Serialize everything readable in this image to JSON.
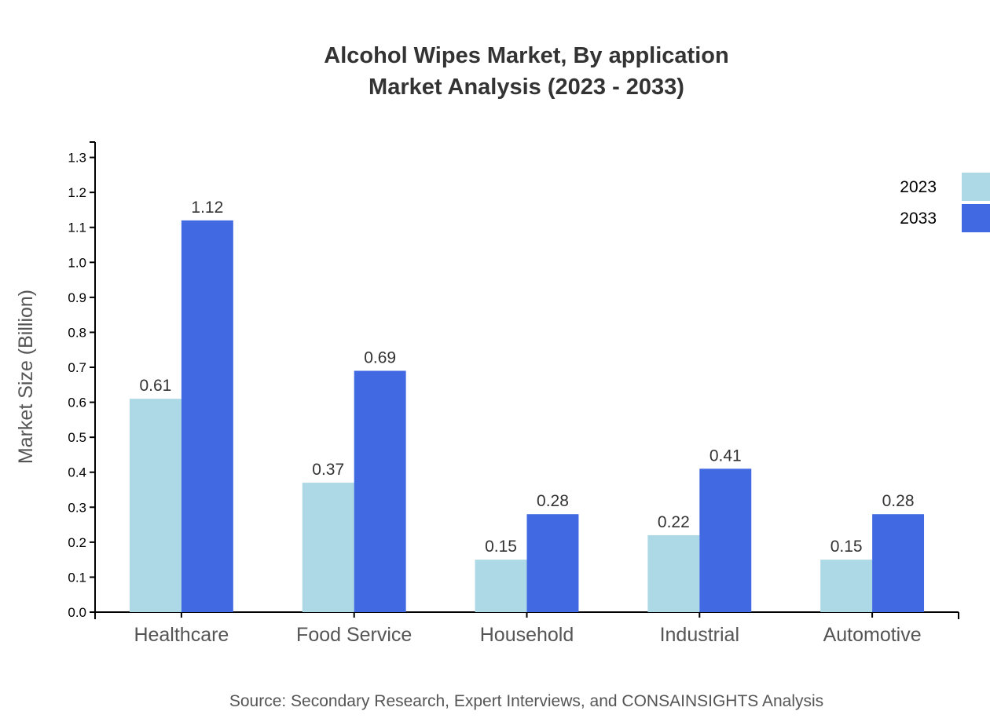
{
  "chart_data": {
    "type": "bar",
    "title": [
      "Alcohol Wipes Market, By application",
      "Market Analysis (2023 - 2033)"
    ],
    "categories": [
      "Healthcare",
      "Food Service",
      "Household",
      "Industrial",
      "Automotive"
    ],
    "series": [
      {
        "name": "2023",
        "values": [
          0.61,
          0.37,
          0.15,
          0.22,
          0.15
        ],
        "color": "#add8e6"
      },
      {
        "name": "2033",
        "values": [
          1.12,
          0.69,
          0.28,
          0.41,
          0.28
        ],
        "color": "#4169e1"
      }
    ],
    "xlabel": "",
    "ylabel": "Market Size (Billion)",
    "ylim": [
      0,
      1.344
    ],
    "yticks": [
      "0.0",
      "0.1",
      "0.2",
      "0.3",
      "0.4",
      "0.5",
      "0.6",
      "0.7",
      "0.8",
      "0.9",
      "1.0",
      "1.1",
      "1.2",
      "1.3"
    ],
    "grid": false,
    "legend_position": "top-right",
    "source": "Source: Secondary Research, Expert Interviews, and CONSAINSIGHTS Analysis"
  }
}
